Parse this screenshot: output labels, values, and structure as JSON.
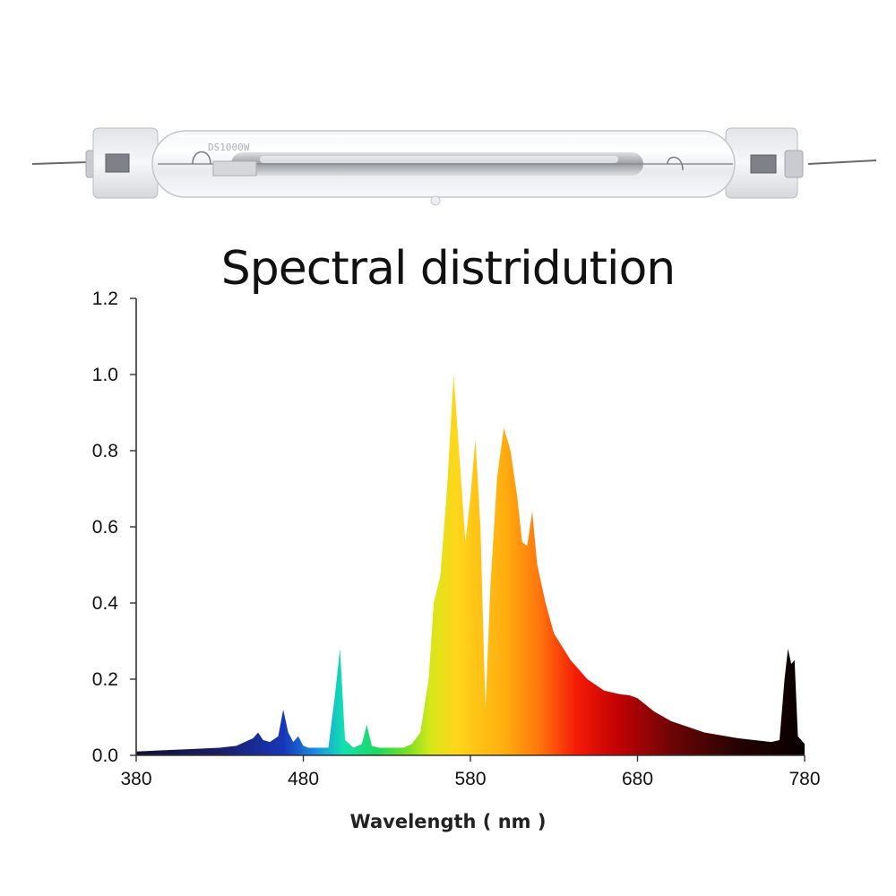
{
  "product_image": {
    "name": "double-ended lamp",
    "print_text": "DS1000W"
  },
  "chart_data": {
    "type": "area",
    "title": "Spectral distridution",
    "xlabel": "Wavelength ( nm )",
    "ylabel": "",
    "xlim": [
      380,
      780
    ],
    "ylim": [
      0,
      1.2
    ],
    "x_ticks": [
      "380",
      "480",
      "580",
      "680",
      "780"
    ],
    "y_ticks": [
      "0.0",
      "0.2",
      "0.4",
      "0.6",
      "0.8",
      "1.0",
      "1.2"
    ],
    "grid": false,
    "legend": "none",
    "fill": "wavelength-colored spectrum",
    "series": [
      {
        "values_x": [
          380,
          390,
          400,
          410,
          420,
          430,
          440,
          445,
          450,
          453,
          456,
          460,
          465,
          468,
          471,
          474,
          477,
          480,
          483,
          485,
          490,
          495,
          499,
          502,
          505,
          510,
          515,
          518,
          521,
          525,
          530,
          540,
          545,
          550,
          555,
          558,
          562,
          566,
          570,
          574,
          577,
          580,
          583,
          586,
          589,
          592,
          596,
          600,
          604,
          608,
          611,
          614,
          617,
          620,
          625,
          630,
          640,
          650,
          660,
          670,
          675,
          680,
          690,
          700,
          720,
          740,
          760,
          765,
          768,
          770,
          772,
          774,
          776,
          780
        ],
        "values_y": [
          0.01,
          0.012,
          0.014,
          0.016,
          0.018,
          0.02,
          0.025,
          0.035,
          0.045,
          0.06,
          0.04,
          0.035,
          0.05,
          0.12,
          0.06,
          0.035,
          0.05,
          0.025,
          0.02,
          0.02,
          0.02,
          0.02,
          0.16,
          0.28,
          0.04,
          0.02,
          0.03,
          0.08,
          0.025,
          0.02,
          0.02,
          0.02,
          0.03,
          0.06,
          0.2,
          0.4,
          0.47,
          0.7,
          1.0,
          0.75,
          0.56,
          0.68,
          0.83,
          0.6,
          0.12,
          0.45,
          0.73,
          0.86,
          0.8,
          0.68,
          0.56,
          0.55,
          0.64,
          0.5,
          0.4,
          0.32,
          0.25,
          0.2,
          0.17,
          0.16,
          0.158,
          0.15,
          0.115,
          0.09,
          0.06,
          0.045,
          0.035,
          0.04,
          0.2,
          0.28,
          0.24,
          0.25,
          0.05,
          0.03
        ]
      }
    ]
  }
}
